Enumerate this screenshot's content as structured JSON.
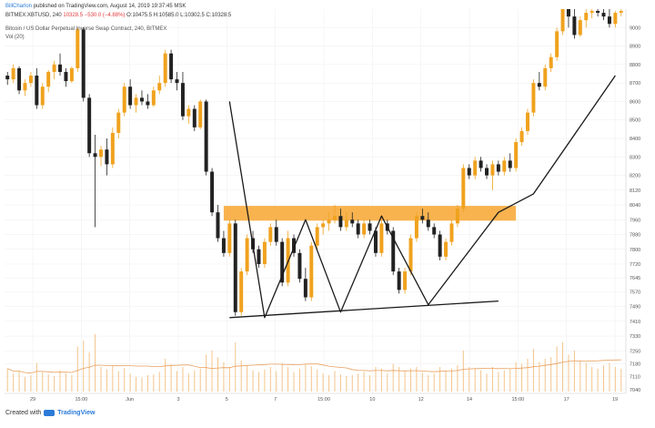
{
  "header": {
    "author": "BillCharlon",
    "published_text": "published on TradingView.com, August 14, 2019 19:37:45 MSK",
    "symbol": "BITMEX:XBTUSD, 240",
    "last_price": "10328.5",
    "change": "−530.0 (−4.88%)",
    "ohlc": "O:10475.5  H:10585.0  L:10302.5  C:10328.5",
    "instrument": "Bitcoin / US Dollar Perpetual Inverse Swap Contract, 240, BITMEX",
    "volume_label": "Vol (20)"
  },
  "footer": {
    "prefix": "Created with",
    "brand": "TradingView"
  },
  "colors": {
    "up": "#f0a21e",
    "down": "#222222",
    "resistance_zone": "#f7a630",
    "trendline": "#1a1a1a",
    "volume": "#f3c48a",
    "volume_ma": "#e8a060",
    "grid": "#eeeeee"
  },
  "chart_data": {
    "type": "candlestick",
    "ylim": [
      7020,
      9100
    ],
    "y_ticks": [
      9000,
      8900,
      8800,
      8700,
      8600,
      8500,
      8400,
      8300,
      8200,
      8120,
      8040,
      7960,
      7880,
      7800,
      7720,
      7645,
      7570,
      7490,
      7410,
      7330,
      7250,
      7180,
      7110,
      7040
    ],
    "x_ticks": [
      "29",
      "15:00",
      "Jun",
      "3",
      "5",
      "7",
      "15:00",
      "10",
      "12",
      "14",
      "15:00",
      "17",
      "19"
    ],
    "resistance_zone": [
      7955,
      8035
    ],
    "candles": [
      [
        8740,
        8760,
        8690,
        8720
      ],
      [
        8720,
        8800,
        8700,
        8780
      ],
      [
        8780,
        8790,
        8640,
        8660
      ],
      [
        8660,
        8720,
        8630,
        8700
      ],
      [
        8700,
        8760,
        8680,
        8740
      ],
      [
        8740,
        8780,
        8560,
        8580
      ],
      [
        8580,
        8700,
        8560,
        8680
      ],
      [
        8680,
        8770,
        8650,
        8760
      ],
      [
        8760,
        8820,
        8720,
        8800
      ],
      [
        8800,
        8860,
        8740,
        8760
      ],
      [
        8760,
        8780,
        8680,
        8710
      ],
      [
        8710,
        8790,
        8700,
        8780
      ],
      [
        8780,
        9000,
        8760,
        8990
      ],
      [
        8990,
        9000,
        8600,
        8620
      ],
      [
        8620,
        8640,
        8300,
        8320
      ],
      [
        8320,
        8420,
        7920,
        8300
      ],
      [
        8300,
        8360,
        8250,
        8340
      ],
      [
        8340,
        8400,
        8200,
        8260
      ],
      [
        8260,
        8460,
        8240,
        8430
      ],
      [
        8430,
        8560,
        8400,
        8540
      ],
      [
        8540,
        8700,
        8520,
        8680
      ],
      [
        8680,
        8720,
        8560,
        8580
      ],
      [
        8580,
        8640,
        8540,
        8620
      ],
      [
        8620,
        8660,
        8580,
        8600
      ],
      [
        8600,
        8640,
        8560,
        8580
      ],
      [
        8580,
        8680,
        8570,
        8660
      ],
      [
        8660,
        8740,
        8640,
        8700
      ],
      [
        8700,
        8880,
        8680,
        8860
      ],
      [
        8860,
        8880,
        8700,
        8720
      ],
      [
        8720,
        8760,
        8660,
        8700
      ],
      [
        8700,
        8760,
        8500,
        8520
      ],
      [
        8520,
        8580,
        8480,
        8560
      ],
      [
        8560,
        8580,
        8440,
        8460
      ],
      [
        8460,
        8610,
        8450,
        8600
      ],
      [
        8600,
        8610,
        8200,
        8220
      ],
      [
        8220,
        8240,
        7980,
        8000
      ],
      [
        8000,
        8040,
        7840,
        7860
      ],
      [
        7860,
        7900,
        7760,
        7780
      ],
      [
        7780,
        7960,
        7760,
        7940
      ],
      [
        7940,
        7960,
        7440,
        7460
      ],
      [
        7460,
        7700,
        7440,
        7680
      ],
      [
        7680,
        7880,
        7660,
        7860
      ],
      [
        7860,
        7900,
        7780,
        7800
      ],
      [
        7800,
        7820,
        7700,
        7720
      ],
      [
        7720,
        7860,
        7700,
        7840
      ],
      [
        7840,
        7940,
        7820,
        7920
      ],
      [
        7920,
        7960,
        7820,
        7840
      ],
      [
        7840,
        7860,
        7600,
        7620
      ],
      [
        7620,
        7900,
        7600,
        7860
      ],
      [
        7860,
        7880,
        7760,
        7780
      ],
      [
        7780,
        7800,
        7620,
        7640
      ],
      [
        7640,
        7700,
        7520,
        7540
      ],
      [
        7540,
        7840,
        7520,
        7820
      ],
      [
        7820,
        7940,
        7800,
        7920
      ],
      [
        7920,
        7960,
        7880,
        7940
      ],
      [
        7940,
        8000,
        7900,
        7960
      ],
      [
        7960,
        8040,
        7940,
        7980
      ],
      [
        7980,
        8020,
        7900,
        7920
      ],
      [
        7920,
        8000,
        7900,
        7960
      ],
      [
        7960,
        8000,
        7920,
        7940
      ],
      [
        7940,
        7960,
        7860,
        7880
      ],
      [
        7880,
        7960,
        7860,
        7940
      ],
      [
        7940,
        7960,
        7880,
        7900
      ],
      [
        7900,
        7920,
        7760,
        7780
      ],
      [
        7780,
        7960,
        7760,
        7940
      ],
      [
        7940,
        7960,
        7880,
        7900
      ],
      [
        7900,
        7920,
        7660,
        7680
      ],
      [
        7680,
        7700,
        7560,
        7580
      ],
      [
        7580,
        7700,
        7560,
        7680
      ],
      [
        7680,
        7880,
        7660,
        7860
      ],
      [
        7860,
        8000,
        7840,
        7980
      ],
      [
        7980,
        8020,
        7940,
        7960
      ],
      [
        7960,
        8000,
        7900,
        7920
      ],
      [
        7920,
        7940,
        7860,
        7880
      ],
      [
        7880,
        7900,
        7740,
        7760
      ],
      [
        7760,
        7860,
        7740,
        7840
      ],
      [
        7840,
        7960,
        7820,
        7940
      ],
      [
        7940,
        8040,
        7920,
        8020
      ],
      [
        8020,
        8260,
        8000,
        8240
      ],
      [
        8240,
        8260,
        8180,
        8200
      ],
      [
        8200,
        8300,
        8180,
        8280
      ],
      [
        8280,
        8300,
        8220,
        8240
      ],
      [
        8240,
        8260,
        8180,
        8200
      ],
      [
        8200,
        8280,
        8120,
        8260
      ],
      [
        8260,
        8280,
        8200,
        8220
      ],
      [
        8220,
        8300,
        8200,
        8280
      ],
      [
        8280,
        8320,
        8220,
        8240
      ],
      [
        8240,
        8400,
        8220,
        8380
      ],
      [
        8380,
        8460,
        8360,
        8440
      ],
      [
        8440,
        8560,
        8420,
        8540
      ],
      [
        8540,
        8720,
        8520,
        8700
      ],
      [
        8700,
        8760,
        8660,
        8680
      ],
      [
        8680,
        8800,
        8660,
        8780
      ],
      [
        8780,
        8860,
        8760,
        8840
      ],
      [
        8840,
        9000,
        8820,
        8980
      ],
      [
        8980,
        9100,
        8960,
        9100
      ],
      [
        9100,
        9100,
        9000,
        9060
      ],
      [
        9060,
        9100,
        8940,
        8960
      ],
      [
        8960,
        9060,
        8950,
        9040
      ],
      [
        9040,
        9100,
        9000,
        9080
      ],
      [
        9080,
        9100,
        9050,
        9090
      ],
      [
        9090,
        9100,
        9060,
        9080
      ],
      [
        9080,
        9100,
        9040,
        9060
      ],
      [
        9060,
        9100,
        9000,
        9020
      ],
      [
        9020,
        9090,
        9000,
        9080
      ],
      [
        9080,
        9100,
        9060,
        9090
      ]
    ],
    "volumes": [
      0.28,
      0.22,
      0.25,
      0.18,
      0.2,
      0.35,
      0.24,
      0.21,
      0.19,
      0.26,
      0.22,
      0.2,
      0.55,
      0.62,
      0.48,
      0.7,
      0.3,
      0.27,
      0.32,
      0.25,
      0.29,
      0.22,
      0.18,
      0.17,
      0.2,
      0.21,
      0.24,
      0.4,
      0.33,
      0.25,
      0.3,
      0.22,
      0.26,
      0.28,
      0.45,
      0.5,
      0.42,
      0.36,
      0.3,
      0.6,
      0.38,
      0.32,
      0.26,
      0.24,
      0.27,
      0.3,
      0.25,
      0.35,
      0.3,
      0.24,
      0.28,
      0.33,
      0.31,
      0.27,
      0.22,
      0.2,
      0.25,
      0.21,
      0.19,
      0.2,
      0.22,
      0.24,
      0.2,
      0.3,
      0.28,
      0.22,
      0.34,
      0.3,
      0.25,
      0.28,
      0.3,
      0.23,
      0.2,
      0.22,
      0.3,
      0.26,
      0.28,
      0.32,
      0.5,
      0.3,
      0.28,
      0.26,
      0.22,
      0.3,
      0.24,
      0.26,
      0.28,
      0.36,
      0.34,
      0.4,
      0.52,
      0.36,
      0.4,
      0.42,
      0.55,
      0.6,
      0.45,
      0.5,
      0.38,
      0.35,
      0.3,
      0.28,
      0.32,
      0.35,
      0.3,
      0.28
    ],
    "trendlines": [
      {
        "name": "lower-support",
        "points": [
          [
            38,
            7430
          ],
          [
            84,
            7520
          ]
        ]
      },
      {
        "name": "w-pattern",
        "points": [
          [
            38,
            8600
          ],
          [
            44,
            7430
          ],
          [
            51,
            7960
          ],
          [
            57,
            7460
          ],
          [
            64,
            7980
          ],
          [
            72,
            7500
          ],
          [
            84,
            8000
          ],
          [
            90,
            8100
          ],
          [
            104,
            8740
          ]
        ]
      }
    ]
  }
}
